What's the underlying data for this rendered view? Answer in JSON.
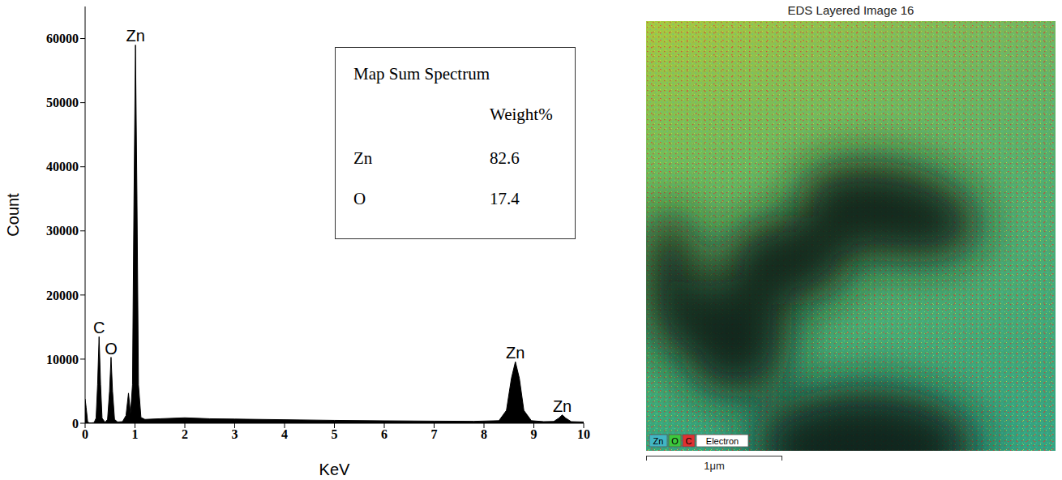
{
  "chart_data": {
    "type": "area",
    "x": [
      0,
      0.02,
      0.05,
      0.08,
      0.12,
      0.18,
      0.22,
      0.25,
      0.28,
      0.31,
      0.34,
      0.4,
      0.45,
      0.49,
      0.52,
      0.55,
      0.59,
      0.65,
      0.75,
      0.82,
      0.87,
      0.91,
      0.95,
      0.98,
      1.01,
      1.04,
      1.07,
      1.12,
      1.2,
      1.5,
      2.0,
      2.5,
      3,
      4,
      5,
      6,
      7,
      7.8,
      8.3,
      8.45,
      8.55,
      8.63,
      8.71,
      8.8,
      8.95,
      9.2,
      9.4,
      9.5,
      9.57,
      9.64,
      9.75,
      10
    ],
    "values": [
      3800,
      2500,
      300,
      50,
      50,
      100,
      800,
      6000,
      13500,
      6000,
      800,
      150,
      600,
      5000,
      10300,
      5000,
      600,
      200,
      250,
      1200,
      4700,
      1500,
      6000,
      35000,
      59000,
      35000,
      6000,
      900,
      600,
      700,
      850,
      700,
      650,
      550,
      450,
      380,
      330,
      300,
      400,
      2000,
      7000,
      9600,
      7000,
      2000,
      400,
      250,
      280,
      800,
      1300,
      800,
      250,
      200
    ],
    "color": "#000000",
    "xlim": [
      0,
      10
    ],
    "xticks": [
      0,
      1,
      2,
      3,
      4,
      5,
      6,
      7,
      8,
      9,
      10
    ],
    "ylim": [
      0,
      65000
    ],
    "yticks": [
      0,
      10000,
      20000,
      30000,
      40000,
      50000,
      60000
    ],
    "x_label": "KeV",
    "y_label": "Count",
    "grid": false,
    "annotations": [
      {
        "text": "Zn",
        "x": 1.01,
        "y": 59000
      },
      {
        "text": "C",
        "x": 0.28,
        "y": 13500
      },
      {
        "text": "O",
        "x": 0.52,
        "y": 10300
      },
      {
        "text": "Zn",
        "x": 8.63,
        "y": 9600
      },
      {
        "text": "Zn",
        "x": 9.57,
        "y": 1300
      }
    ]
  },
  "inset_table": {
    "title": "Map Sum Spectrum",
    "column": "Weight%",
    "rows": [
      [
        "Zn",
        82.6
      ],
      [
        "O",
        17.4
      ]
    ]
  },
  "map_image": {
    "title": "EDS Layered Image 16",
    "legend": [
      {
        "label": "Zn",
        "color": "#41b6c4"
      },
      {
        "label": "O",
        "color": "#3cc83c"
      },
      {
        "label": "C",
        "color": "#e03030"
      },
      {
        "label": "Electron",
        "color": "#ffffff"
      }
    ],
    "scale_bar": "1μm"
  }
}
